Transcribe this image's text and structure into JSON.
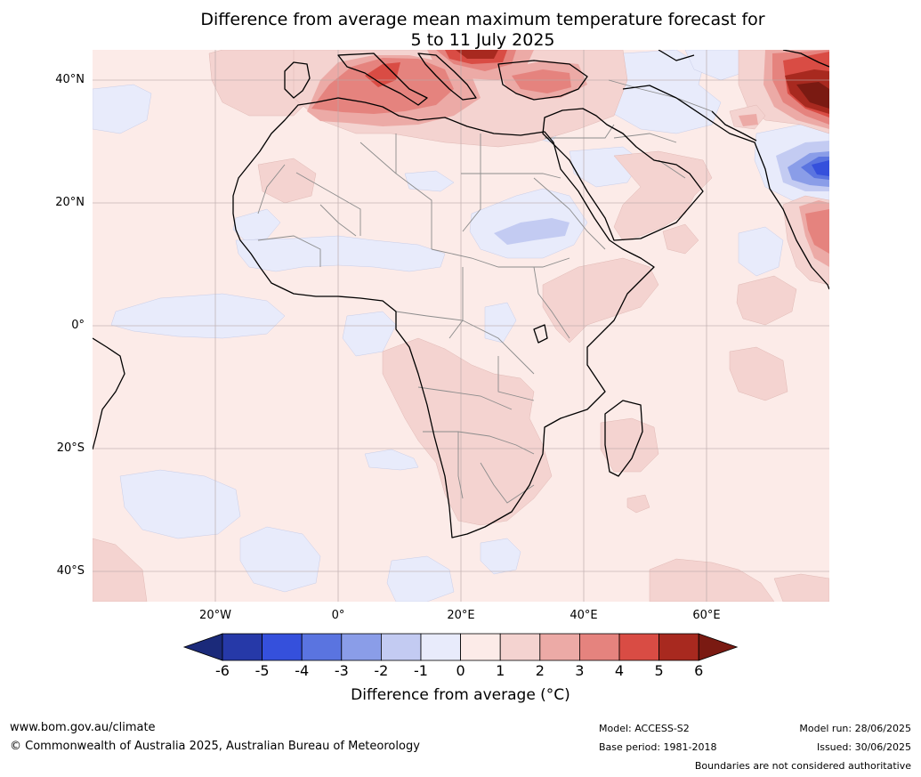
{
  "title_line1": "Difference from average mean maximum temperature forecast for",
  "title_line2": "5 to 11 July 2025",
  "lat_labels": [
    "40°N",
    "20°N",
    "0°",
    "20°S",
    "40°S"
  ],
  "lon_labels": [
    "20°W",
    "0°",
    "20°E",
    "40°E",
    "60°E"
  ],
  "colorbar": {
    "label": "Difference from average (°C)",
    "ticks": [
      "-6",
      "-5",
      "-4",
      "-3",
      "-2",
      "-1",
      "0",
      "1",
      "2",
      "3",
      "4",
      "5",
      "6"
    ],
    "colors": [
      "#1b2a7a",
      "#2639a8",
      "#3550dc",
      "#5a74e0",
      "#8a9de8",
      "#c3cbf2",
      "#e8ebfb",
      "#fcebe8",
      "#f4d3d0",
      "#ecaaa6",
      "#e5837e",
      "#d94c44",
      "#a8291f",
      "#7a1a12"
    ]
  },
  "footer": {
    "website": "www.bom.gov.au/climate",
    "copyright": "© Commonwealth of Australia 2025, Australian Bureau of Meteorology",
    "model": "Model: ACCESS-S2",
    "base_period": "Base period: 1981-2018",
    "model_run": "Model run: 28/06/2025",
    "issued": "Issued: 30/06/2025",
    "disclaimer": "Boundaries are not considered authoritative"
  }
}
